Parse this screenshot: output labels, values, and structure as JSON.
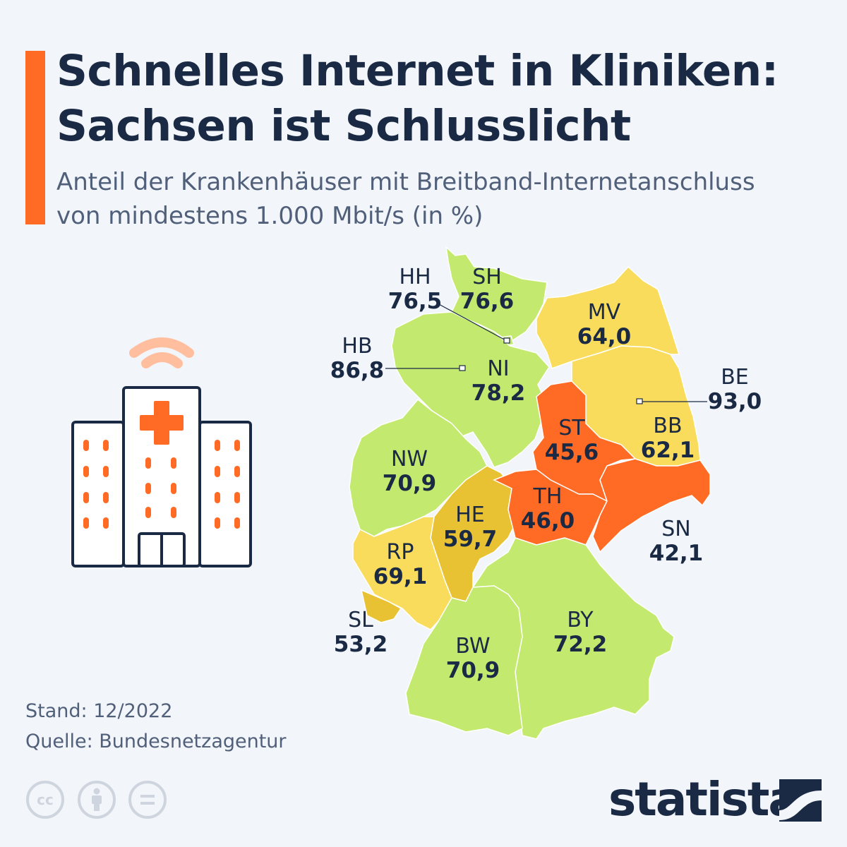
{
  "header": {
    "title_line1": "Schnelles Internet in Kliniken:",
    "title_line2": "Sachsen ist Schlusslicht",
    "subtitle_line1": "Anteil der Krankenhäuser mit Breitband-Internetanschluss",
    "subtitle_line2": "von mindestens 1.000 Mbit/s (in %)",
    "accent_color": "#ff6b24"
  },
  "chart_data": {
    "type": "choropleth-map",
    "regions": [
      {
        "code": "SH",
        "value": "76,6",
        "color": "#c3ea6f"
      },
      {
        "code": "HH",
        "value": "76,5",
        "color": "#c3ea6f"
      },
      {
        "code": "HB",
        "value": "86,8",
        "color": "#6dbf1f"
      },
      {
        "code": "NI",
        "value": "78,2",
        "color": "#c3ea6f"
      },
      {
        "code": "MV",
        "value": "64,0",
        "color": "#f9dc5c"
      },
      {
        "code": "BE",
        "value": "93,0",
        "color": "#6dbf1f"
      },
      {
        "code": "BB",
        "value": "62,1",
        "color": "#f9dc5c"
      },
      {
        "code": "ST",
        "value": "45,6",
        "color": "#ff6b24"
      },
      {
        "code": "NW",
        "value": "70,9",
        "color": "#c3ea6f"
      },
      {
        "code": "HE",
        "value": "59,7",
        "color": "#e8c233"
      },
      {
        "code": "TH",
        "value": "46,0",
        "color": "#ff6b24"
      },
      {
        "code": "SN",
        "value": "42,1",
        "color": "#ff6b24"
      },
      {
        "code": "RP",
        "value": "69,1",
        "color": "#f9dc5c"
      },
      {
        "code": "SL",
        "value": "53,2",
        "color": "#e8c233"
      },
      {
        "code": "BY",
        "value": "72,2",
        "color": "#c3ea6f"
      },
      {
        "code": "BW",
        "value": "70,9",
        "color": "#c3ea6f"
      }
    ]
  },
  "icon": "hospital-wifi-icon",
  "footer": {
    "stand": "Stand: 12/2022",
    "source": "Quelle: Bundesnetzagentur",
    "license_icons": [
      "creative-commons-icon",
      "attribution-icon",
      "no-derivatives-icon"
    ],
    "cc_label": "cc",
    "brand": "statista"
  }
}
